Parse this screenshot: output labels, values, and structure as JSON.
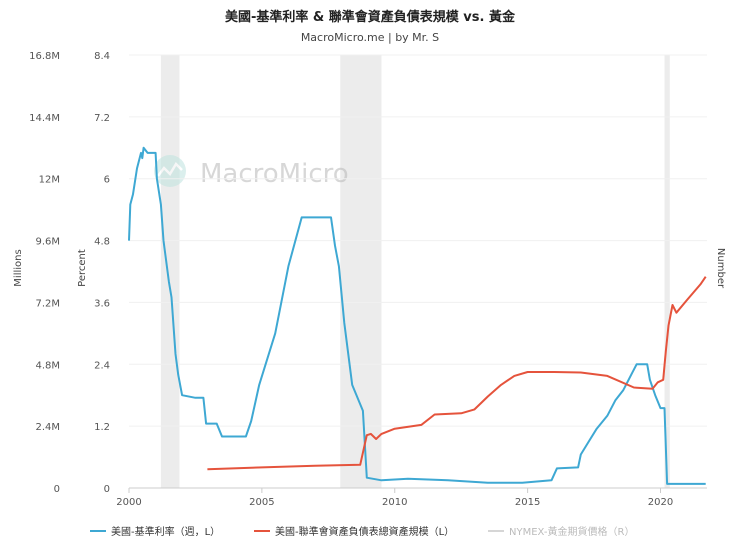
{
  "chart_data": {
    "type": "line",
    "title": "美國-基準利率 & 聯準會資產負債表規模 vs. 黃金",
    "subtitle": "MacroMicro.me | by Mr. S",
    "watermark": "MacroMicro",
    "axes": {
      "left_outer": {
        "label": "Millions",
        "ticks": [
          "0",
          "2.4M",
          "4.8M",
          "7.2M",
          "9.6M",
          "12M",
          "14.4M",
          "16.8M"
        ],
        "range": [
          0,
          16.8
        ]
      },
      "left_inner": {
        "label": "Percent",
        "ticks": [
          "0",
          "1.2",
          "2.4",
          "3.6",
          "4.8",
          "6",
          "7.2",
          "8.4"
        ],
        "range": [
          0,
          8.4
        ]
      },
      "right": {
        "label": "Number"
      },
      "x": {
        "ticks": [
          "2000",
          "2005",
          "2010",
          "2015",
          "2020"
        ],
        "range": [
          2000,
          2021.75
        ]
      }
    },
    "recessions": [
      [
        2001.2,
        2001.9
      ],
      [
        2007.95,
        2009.5
      ],
      [
        2020.15,
        2020.35
      ]
    ],
    "series": [
      {
        "name": "美國-基準利率（週，L）",
        "axis": "left_inner",
        "color": "#3ea8d3",
        "points": [
          [
            2000.0,
            4.8
          ],
          [
            2000.05,
            5.5
          ],
          [
            2000.15,
            5.7
          ],
          [
            2000.3,
            6.2
          ],
          [
            2000.45,
            6.5
          ],
          [
            2000.5,
            6.4
          ],
          [
            2000.55,
            6.6
          ],
          [
            2000.7,
            6.5
          ],
          [
            2001.0,
            6.5
          ],
          [
            2001.05,
            6.0
          ],
          [
            2001.2,
            5.5
          ],
          [
            2001.3,
            4.8
          ],
          [
            2001.5,
            4.0
          ],
          [
            2001.6,
            3.7
          ],
          [
            2001.75,
            2.6
          ],
          [
            2001.85,
            2.2
          ],
          [
            2002.0,
            1.8
          ],
          [
            2002.5,
            1.75
          ],
          [
            2002.8,
            1.75
          ],
          [
            2002.9,
            1.25
          ],
          [
            2003.3,
            1.25
          ],
          [
            2003.5,
            1.0
          ],
          [
            2004.4,
            1.0
          ],
          [
            2004.6,
            1.3
          ],
          [
            2004.9,
            2.0
          ],
          [
            2005.5,
            3.0
          ],
          [
            2006.0,
            4.3
          ],
          [
            2006.5,
            5.25
          ],
          [
            2007.6,
            5.25
          ],
          [
            2007.75,
            4.7
          ],
          [
            2007.9,
            4.3
          ],
          [
            2008.1,
            3.2
          ],
          [
            2008.4,
            2.0
          ],
          [
            2008.8,
            1.5
          ],
          [
            2008.95,
            0.2
          ],
          [
            2009.5,
            0.15
          ],
          [
            2010.5,
            0.18
          ],
          [
            2012.0,
            0.15
          ],
          [
            2013.5,
            0.1
          ],
          [
            2014.8,
            0.1
          ],
          [
            2015.9,
            0.15
          ],
          [
            2016.1,
            0.38
          ],
          [
            2016.9,
            0.4
          ],
          [
            2017.0,
            0.65
          ],
          [
            2017.3,
            0.9
          ],
          [
            2017.6,
            1.15
          ],
          [
            2018.0,
            1.4
          ],
          [
            2018.3,
            1.7
          ],
          [
            2018.6,
            1.9
          ],
          [
            2018.9,
            2.2
          ],
          [
            2019.1,
            2.4
          ],
          [
            2019.5,
            2.4
          ],
          [
            2019.6,
            2.1
          ],
          [
            2019.8,
            1.8
          ],
          [
            2020.0,
            1.55
          ],
          [
            2020.15,
            1.55
          ],
          [
            2020.25,
            0.08
          ],
          [
            2021.0,
            0.08
          ],
          [
            2021.7,
            0.08
          ]
        ]
      },
      {
        "name": "美國-聯準會資產負債表總資產規模（L）",
        "axis": "left_outer",
        "color": "#e5533c",
        "points": [
          [
            2002.95,
            0.73
          ],
          [
            2005.0,
            0.8
          ],
          [
            2007.0,
            0.86
          ],
          [
            2008.7,
            0.9
          ],
          [
            2008.85,
            1.6
          ],
          [
            2008.95,
            2.05
          ],
          [
            2009.1,
            2.1
          ],
          [
            2009.3,
            1.9
          ],
          [
            2009.5,
            2.1
          ],
          [
            2010.0,
            2.3
          ],
          [
            2011.0,
            2.45
          ],
          [
            2011.5,
            2.85
          ],
          [
            2012.5,
            2.9
          ],
          [
            2013.0,
            3.05
          ],
          [
            2013.5,
            3.55
          ],
          [
            2014.0,
            4.0
          ],
          [
            2014.5,
            4.35
          ],
          [
            2015.0,
            4.5
          ],
          [
            2016.0,
            4.5
          ],
          [
            2017.0,
            4.48
          ],
          [
            2018.0,
            4.35
          ],
          [
            2019.0,
            3.9
          ],
          [
            2019.7,
            3.85
          ],
          [
            2019.9,
            4.1
          ],
          [
            2020.1,
            4.2
          ],
          [
            2020.2,
            5.3
          ],
          [
            2020.3,
            6.3
          ],
          [
            2020.45,
            7.1
          ],
          [
            2020.6,
            6.8
          ],
          [
            2021.0,
            7.3
          ],
          [
            2021.5,
            7.9
          ],
          [
            2021.7,
            8.2
          ]
        ]
      },
      {
        "name": "NYMEX-黃金期貨價格（R）",
        "axis": "right",
        "color": "#d6d6d6",
        "points": []
      }
    ]
  }
}
